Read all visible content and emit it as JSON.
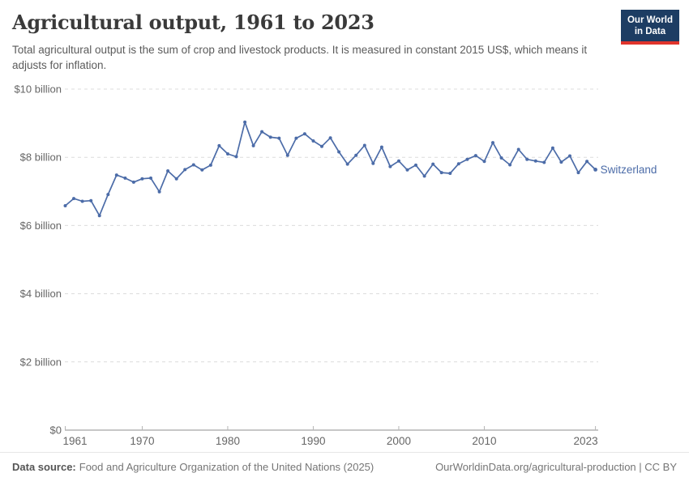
{
  "logo": {
    "line1": "Our World",
    "line2": "in Data"
  },
  "chart_data": {
    "type": "line",
    "title": "Agricultural output, 1961 to 2023",
    "subtitle": "Total agricultural output is the sum of crop and livestock products. It is measured in constant 2015 US$, which means it adjusts for inflation.",
    "unit": "constant 2015 US$",
    "xlim": [
      1961,
      2023
    ],
    "ylim": [
      0,
      10000000000
    ],
    "grid": "horizontal-dashed",
    "legend_position": "end-of-line",
    "colors": {
      "line": "#4C6CA8",
      "grid": "#dcdcdc",
      "axis": "#8f8f8f",
      "tick_text": "#666666"
    },
    "x": [
      1961,
      1962,
      1963,
      1964,
      1965,
      1966,
      1967,
      1968,
      1969,
      1970,
      1971,
      1972,
      1973,
      1974,
      1975,
      1976,
      1977,
      1978,
      1979,
      1980,
      1981,
      1982,
      1983,
      1984,
      1985,
      1986,
      1987,
      1988,
      1989,
      1990,
      1991,
      1992,
      1993,
      1994,
      1995,
      1996,
      1997,
      1998,
      1999,
      2000,
      2001,
      2002,
      2003,
      2004,
      2005,
      2006,
      2007,
      2008,
      2009,
      2010,
      2011,
      2012,
      2013,
      2014,
      2015,
      2016,
      2017,
      2018,
      2019,
      2020,
      2021,
      2022,
      2023
    ],
    "series": [
      {
        "name": "Switzerland",
        "values_billion_usd": [
          6.58,
          6.79,
          6.71,
          6.73,
          6.29,
          6.91,
          7.48,
          7.39,
          7.27,
          7.37,
          7.39,
          6.99,
          7.6,
          7.37,
          7.64,
          7.78,
          7.63,
          7.77,
          8.34,
          8.1,
          8.02,
          9.03,
          8.34,
          8.75,
          8.59,
          8.56,
          8.06,
          8.56,
          8.69,
          8.48,
          8.32,
          8.57,
          8.16,
          7.8,
          8.06,
          8.35,
          7.82,
          8.3,
          7.73,
          7.89,
          7.63,
          7.77,
          7.45,
          7.8,
          7.55,
          7.53,
          7.81,
          7.94,
          8.05,
          7.88,
          8.43,
          7.98,
          7.78,
          8.23,
          7.94,
          7.89,
          7.85,
          8.27,
          7.86,
          8.04,
          7.55,
          7.88,
          7.64
        ]
      }
    ],
    "yticks": [
      {
        "v": 0,
        "label": "$0"
      },
      {
        "v": 2,
        "label": "$2 billion"
      },
      {
        "v": 4,
        "label": "$4 billion"
      },
      {
        "v": 6,
        "label": "$6 billion"
      },
      {
        "v": 8,
        "label": "$8 billion"
      },
      {
        "v": 10,
        "label": "$10 billion"
      }
    ],
    "xticks": [
      1961,
      1970,
      1980,
      1990,
      2000,
      2010,
      2023
    ]
  },
  "footer": {
    "datasource_label": "Data source:",
    "datasource_value": "Food and Agriculture Organization of the United Nations (2025)",
    "attribution": "OurWorldinData.org/agricultural-production | CC BY"
  }
}
